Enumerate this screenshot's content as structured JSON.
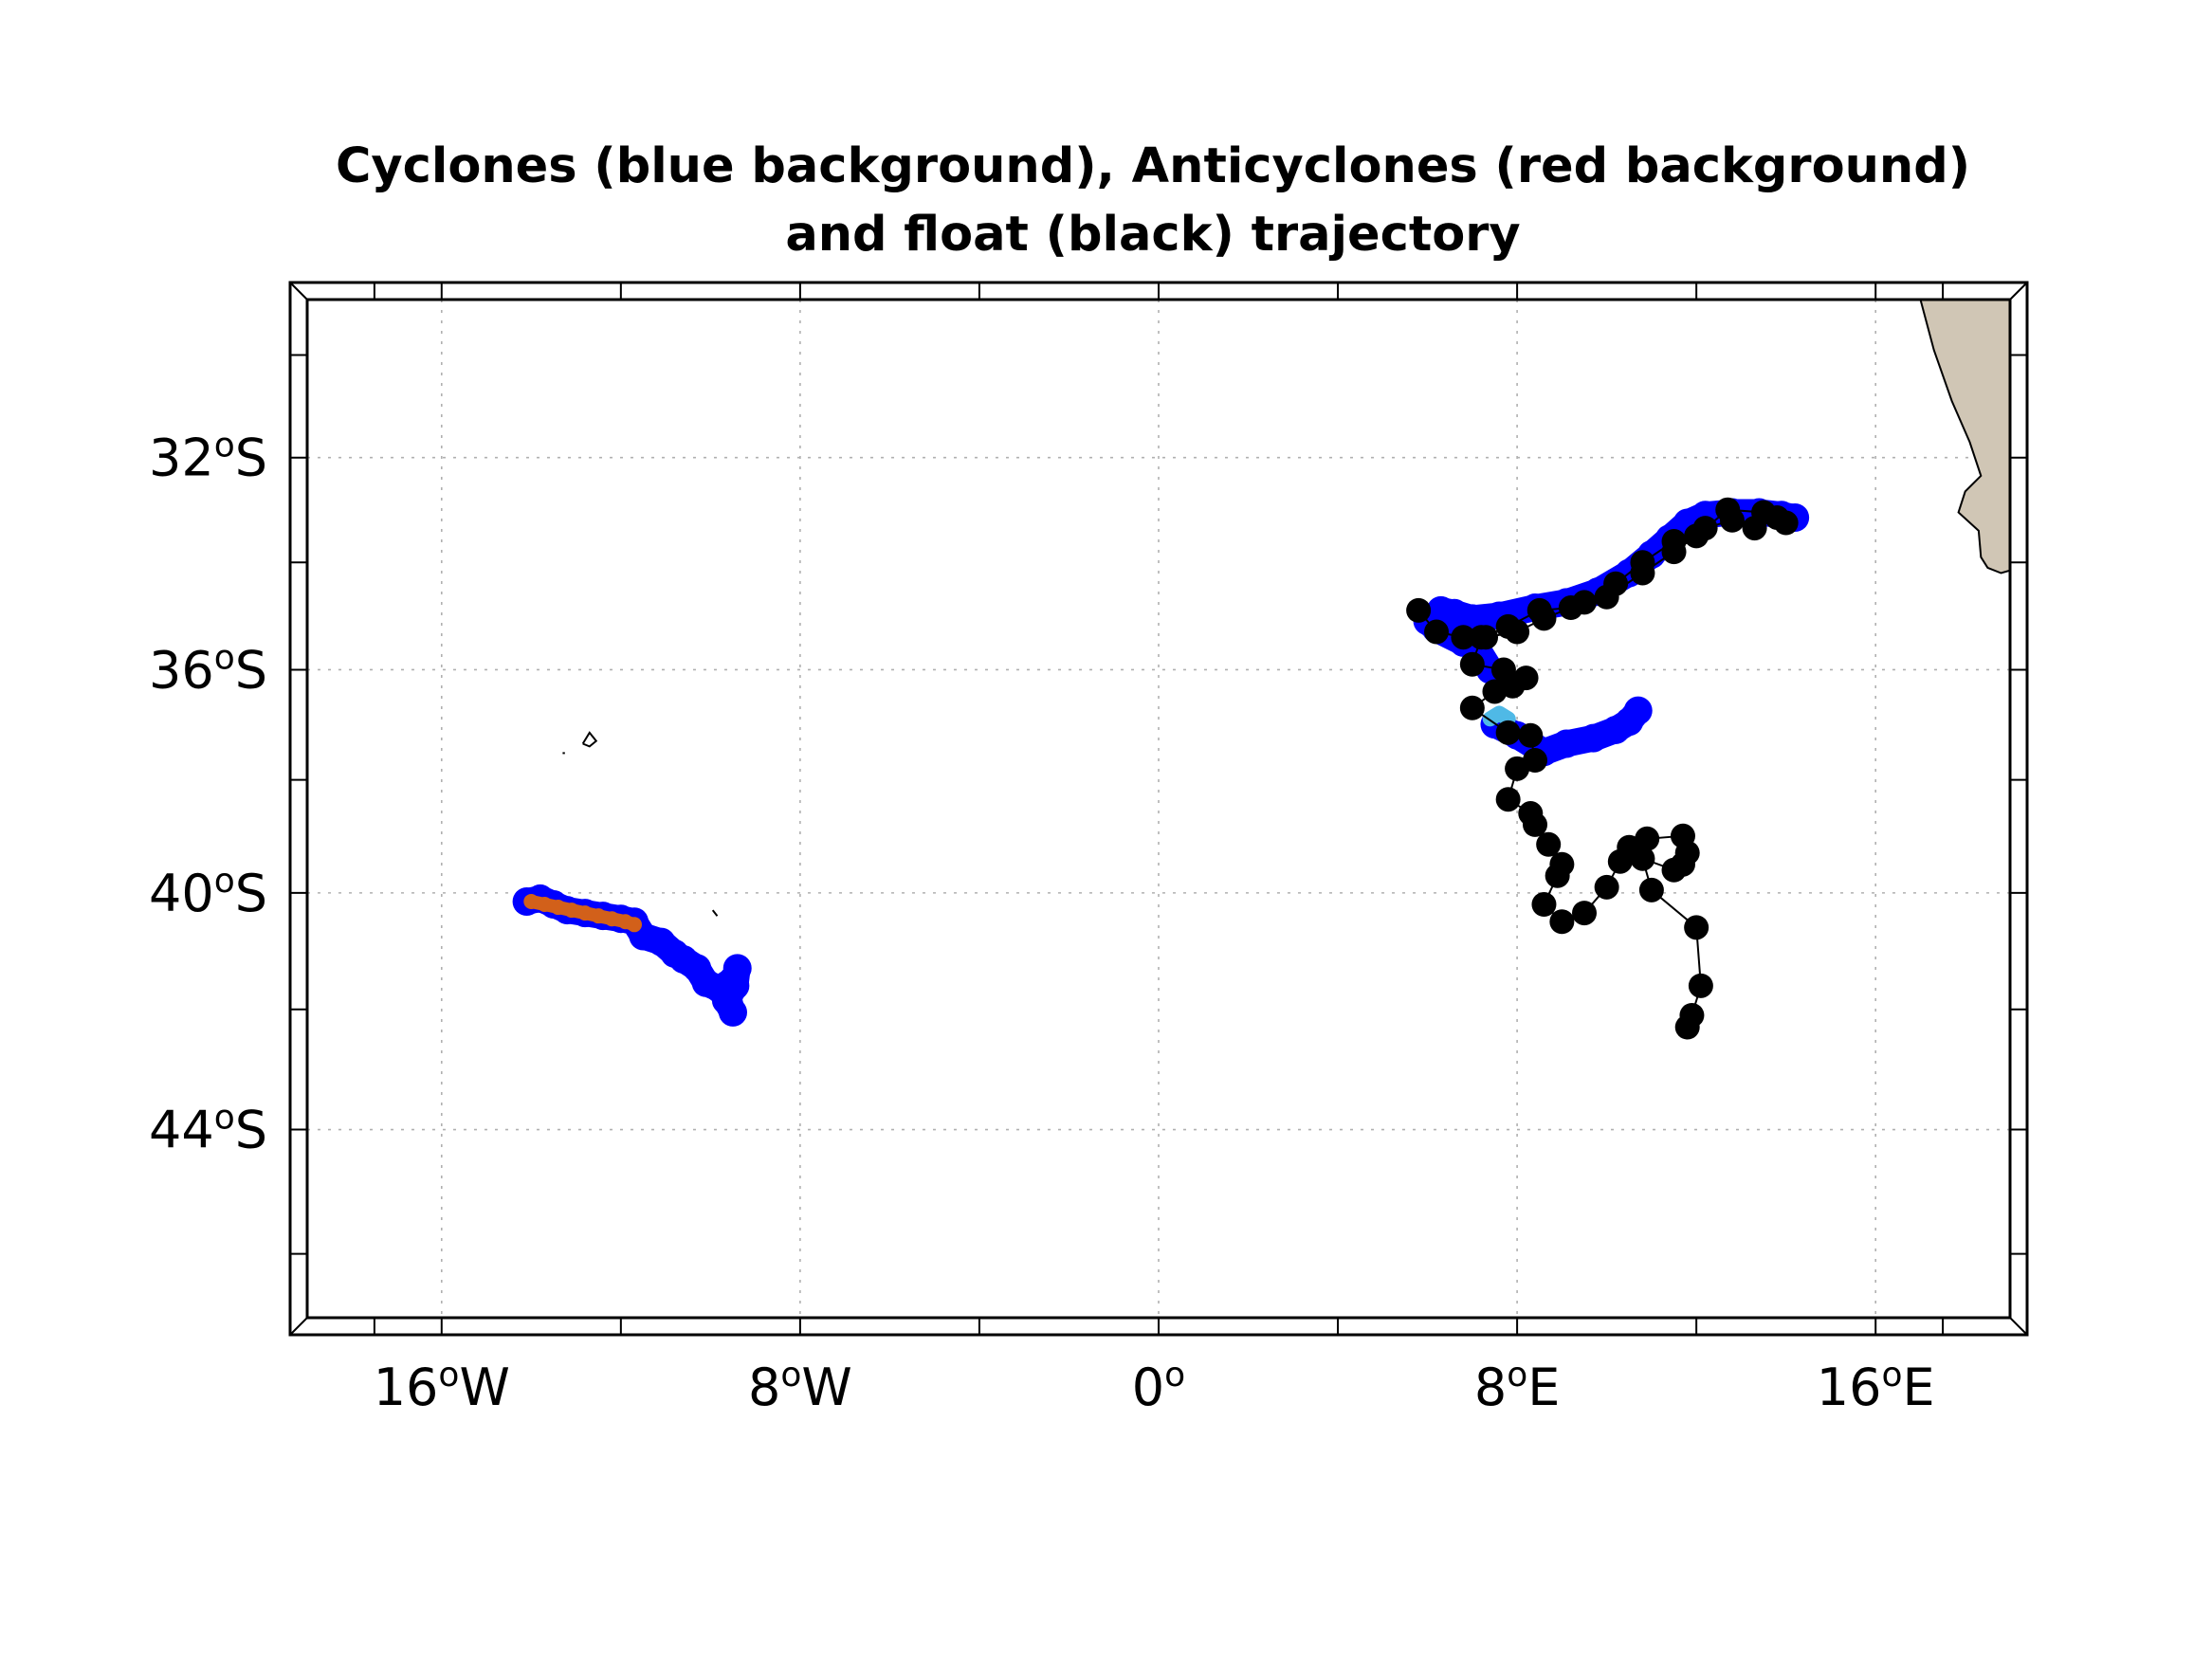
{
  "chart_data": {
    "type": "map",
    "title": [
      "Cyclones (blue background), Anticyclones (red background)",
      "and float (black) trajectory"
    ],
    "projection": "mercator",
    "lon_range": [
      -19,
      19
    ],
    "lat_range": [
      -47,
      -28.9
    ],
    "grid": true,
    "x_ticks": [
      {
        "value": -16,
        "deg": "16",
        "hemi": "W"
      },
      {
        "value": -8,
        "deg": "8",
        "hemi": "W"
      },
      {
        "value": 0,
        "deg": "0",
        "hemi": ""
      },
      {
        "value": 8,
        "deg": "8",
        "hemi": "E"
      },
      {
        "value": 16,
        "deg": "16",
        "hemi": "E"
      }
    ],
    "y_ticks": [
      {
        "value": -32,
        "deg": "32",
        "hemi": "S"
      },
      {
        "value": -36,
        "deg": "36",
        "hemi": "S"
      },
      {
        "value": -40,
        "deg": "40",
        "hemi": "S"
      },
      {
        "value": -44,
        "deg": "44",
        "hemi": "S"
      }
    ],
    "minor_x": [
      -17.5,
      -12,
      -4,
      4,
      12,
      17.5
    ],
    "minor_y": [
      -30,
      -34,
      -38,
      -42,
      -46
    ],
    "colors": {
      "cyclone": "#0000ff",
      "anticyclone": "#d2601a",
      "cyclone_light": "#4fb9e6",
      "float": "#000000",
      "land": "#d0c6b5",
      "grid": "#b0b0b0"
    },
    "land": [
      [
        19,
        -28.9
      ],
      [
        17.0,
        -28.9
      ],
      [
        17.3,
        -29.9
      ],
      [
        17.7,
        -30.9
      ],
      [
        18.1,
        -31.7
      ],
      [
        18.35,
        -32.35
      ],
      [
        18.0,
        -32.65
      ],
      [
        17.85,
        -33.05
      ],
      [
        18.3,
        -33.4
      ],
      [
        18.35,
        -33.9
      ],
      [
        18.5,
        -34.1
      ],
      [
        18.8,
        -34.2
      ],
      [
        19,
        -34.15
      ]
    ],
    "islands": [
      [
        [
          -12.85,
          -37.35
        ],
        [
          -12.7,
          -37.15
        ],
        [
          -12.55,
          -37.3
        ],
        [
          -12.7,
          -37.4
        ],
        [
          -12.85,
          -37.35
        ]
      ],
      [
        [
          -13.3,
          -37.52
        ],
        [
          -13.25,
          -37.52
        ]
      ],
      [
        [
          -9.95,
          -40.3
        ],
        [
          -9.85,
          -40.4
        ]
      ]
    ],
    "cyclone_tracks": [
      [
        [
          -14.1,
          -40.15
        ],
        [
          -13.8,
          -40.1
        ],
        [
          -13.5,
          -40.2
        ],
        [
          -13.2,
          -40.3
        ],
        [
          -12.8,
          -40.35
        ],
        [
          -12.4,
          -40.4
        ],
        [
          -12.0,
          -40.45
        ],
        [
          -11.7,
          -40.5
        ],
        [
          -11.5,
          -40.75
        ],
        [
          -11.1,
          -40.85
        ],
        [
          -10.8,
          -41.05
        ],
        [
          -10.6,
          -41.15
        ],
        [
          -10.3,
          -41.3
        ],
        [
          -10.1,
          -41.55
        ],
        [
          -9.8,
          -41.65
        ],
        [
          -9.5,
          -41.5
        ],
        [
          -9.6,
          -41.85
        ],
        [
          -9.5,
          -42.05
        ],
        [
          -9.65,
          -41.85
        ],
        [
          -9.45,
          -41.6
        ],
        [
          -9.4,
          -41.3
        ]
      ],
      [
        [
          7.4,
          -36.0
        ],
        [
          7.1,
          -35.6
        ],
        [
          6.8,
          -35.5
        ],
        [
          6.2,
          -35.25
        ],
        [
          6.0,
          -35.1
        ],
        [
          6.3,
          -34.9
        ],
        [
          6.6,
          -34.95
        ],
        [
          7.0,
          -35.05
        ],
        [
          7.6,
          -35.0
        ],
        [
          8.4,
          -34.85
        ],
        [
          9.1,
          -34.75
        ],
        [
          9.8,
          -34.55
        ],
        [
          10.5,
          -34.2
        ],
        [
          11.0,
          -33.85
        ],
        [
          11.4,
          -33.55
        ],
        [
          11.8,
          -33.25
        ],
        [
          12.2,
          -33.1
        ],
        [
          12.8,
          -33.05
        ],
        [
          13.4,
          -33.05
        ],
        [
          13.9,
          -33.1
        ],
        [
          14.2,
          -33.15
        ]
      ],
      [
        [
          7.5,
          -37.0
        ],
        [
          8.0,
          -37.2
        ],
        [
          8.6,
          -37.5
        ],
        [
          9.1,
          -37.35
        ],
        [
          9.7,
          -37.25
        ],
        [
          10.2,
          -37.1
        ],
        [
          10.5,
          -36.95
        ],
        [
          10.7,
          -36.75
        ]
      ]
    ],
    "cyclone_track_light": [
      [
        7.4,
        -36.9
      ],
      [
        7.6,
        -36.8
      ],
      [
        7.8,
        -36.9
      ]
    ],
    "anticyclone_tracks": [
      [
        [
          -14.0,
          -40.15
        ],
        [
          -13.7,
          -40.2
        ],
        [
          -13.4,
          -40.25
        ],
        [
          -13.1,
          -40.3
        ],
        [
          -12.8,
          -40.35
        ],
        [
          -12.5,
          -40.4
        ],
        [
          -12.2,
          -40.45
        ],
        [
          -11.9,
          -40.5
        ],
        [
          -11.7,
          -40.55
        ]
      ]
    ],
    "float_track": [
      [
        5.8,
        -34.9
      ],
      [
        6.2,
        -35.3
      ],
      [
        6.8,
        -35.4
      ],
      [
        7.3,
        -35.4
      ],
      [
        8.0,
        -35.3
      ],
      [
        8.6,
        -35.05
      ],
      [
        9.5,
        -34.75
      ],
      [
        10.2,
        -34.4
      ],
      [
        10.8,
        -34.0
      ],
      [
        11.5,
        -33.6
      ],
      [
        12.2,
        -33.35
      ],
      [
        12.8,
        -33.2
      ],
      [
        13.3,
        -33.35
      ],
      [
        13.8,
        -33.15
      ],
      [
        14.0,
        -33.25
      ],
      [
        13.5,
        -33.05
      ],
      [
        12.7,
        -33.0
      ],
      [
        12.0,
        -33.5
      ],
      [
        11.5,
        -33.8
      ],
      [
        10.8,
        -34.2
      ],
      [
        10.0,
        -34.65
      ],
      [
        9.2,
        -34.85
      ],
      [
        8.5,
        -34.9
      ],
      [
        7.8,
        -35.2
      ],
      [
        7.2,
        -35.4
      ],
      [
        7.0,
        -35.9
      ],
      [
        7.7,
        -36.0
      ],
      [
        7.9,
        -36.3
      ],
      [
        8.2,
        -36.15
      ],
      [
        7.5,
        -36.4
      ],
      [
        7.0,
        -36.7
      ],
      [
        7.8,
        -37.15
      ],
      [
        8.3,
        -37.2
      ],
      [
        8.4,
        -37.65
      ],
      [
        8.0,
        -37.8
      ],
      [
        7.8,
        -38.35
      ],
      [
        8.3,
        -38.6
      ],
      [
        8.4,
        -38.8
      ],
      [
        8.7,
        -39.15
      ],
      [
        9.0,
        -39.5
      ],
      [
        8.9,
        -39.7
      ],
      [
        8.6,
        -40.2
      ],
      [
        9.0,
        -40.5
      ],
      [
        9.5,
        -40.35
      ],
      [
        10.0,
        -39.9
      ],
      [
        10.3,
        -39.45
      ],
      [
        10.5,
        -39.2
      ],
      [
        10.9,
        -39.05
      ],
      [
        11.7,
        -39.0
      ],
      [
        11.8,
        -39.3
      ],
      [
        11.7,
        -39.5
      ],
      [
        11.5,
        -39.6
      ],
      [
        10.8,
        -39.4
      ],
      [
        11.0,
        -39.95
      ],
      [
        12.0,
        -40.6
      ],
      [
        12.1,
        -41.6
      ],
      [
        11.9,
        -42.1
      ],
      [
        11.8,
        -42.3
      ]
    ]
  }
}
